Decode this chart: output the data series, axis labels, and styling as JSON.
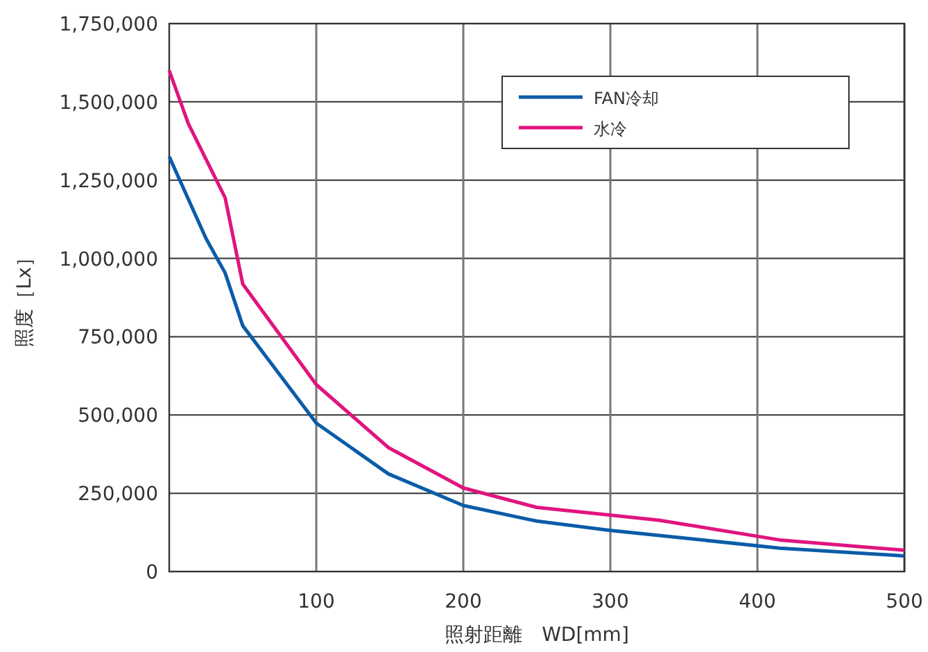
{
  "chart_data": {
    "type": "line",
    "xlabel": "照射距離　WD[mm]",
    "ylabel": "照度［Lx］",
    "xlim": [
      0,
      500
    ],
    "xticks": [
      100,
      200,
      300,
      400,
      500
    ],
    "ylim": [
      0,
      1750000
    ],
    "yticks": [
      {
        "value": 0,
        "label": "0"
      },
      {
        "value": 250000,
        "label": "250,000"
      },
      {
        "value": 500000,
        "label": "500,000"
      },
      {
        "value": 750000,
        "label": "750,000"
      },
      {
        "value": 1000000,
        "label": "1,000,000"
      },
      {
        "value": 1250000,
        "label": "1,250,000"
      },
      {
        "value": 1500000,
        "label": "1,500,000"
      },
      {
        "value": 1750000,
        "label": "1,750,000"
      }
    ],
    "grid": true,
    "legend": "top right",
    "marker": "none",
    "line_style": "solid",
    "series": [
      {
        "name": "FAN冷却",
        "color": "#0a5ca8",
        "x": [
          0,
          25,
          38,
          50,
          100,
          149,
          200,
          250,
          299,
          415,
          500
        ],
        "values": [
          1325000,
          1064000,
          954000,
          785000,
          474000,
          312000,
          211000,
          161000,
          132000,
          75000,
          50000
        ]
      },
      {
        "name": "水冷",
        "color": "#e0147f",
        "x": [
          0,
          13,
          38,
          50,
          100,
          149,
          200,
          250,
          333,
          415,
          500
        ],
        "values": [
          1600000,
          1430000,
          1194000,
          918000,
          597000,
          396000,
          267000,
          205000,
          164000,
          101000,
          68000
        ]
      }
    ]
  }
}
